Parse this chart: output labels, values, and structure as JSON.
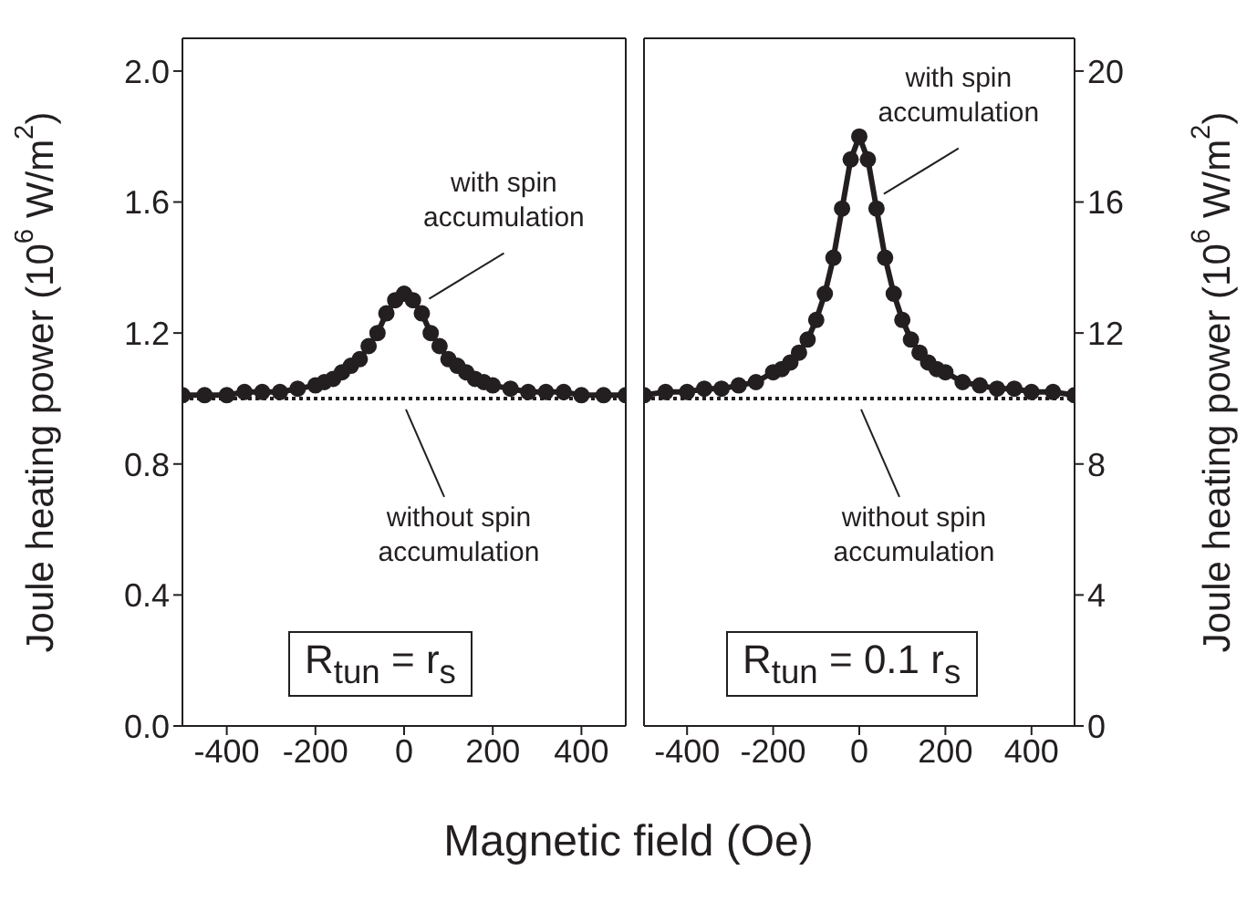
{
  "chart_data": [
    {
      "type": "line",
      "ylabel": "Joule heating power (10$^{6}$ W/m$^{2}$)",
      "xlabel": "Magnetic field (Oe)",
      "x": [
        -500,
        -450,
        -400,
        -360,
        -320,
        -280,
        -240,
        -200,
        -180,
        -160,
        -140,
        -120,
        -100,
        -80,
        -60,
        -40,
        -20,
        0,
        20,
        40,
        60,
        80,
        100,
        120,
        140,
        160,
        180,
        200,
        240,
        280,
        320,
        360,
        400,
        450,
        500
      ],
      "series": [
        {
          "name": "with spin accumulation",
          "color": "#231f20",
          "marker": "circle",
          "line_style": "solid",
          "values": [
            1.01,
            1.01,
            1.01,
            1.02,
            1.02,
            1.02,
            1.03,
            1.04,
            1.05,
            1.06,
            1.08,
            1.1,
            1.12,
            1.16,
            1.2,
            1.26,
            1.3,
            1.32,
            1.3,
            1.26,
            1.2,
            1.16,
            1.12,
            1.1,
            1.08,
            1.06,
            1.05,
            1.04,
            1.03,
            1.02,
            1.02,
            1.02,
            1.01,
            1.01,
            1.01
          ]
        },
        {
          "name": "without spin accumulation",
          "color": "#231f20",
          "marker": "none",
          "line_style": "dotted",
          "values": [
            1.0,
            1.0,
            1.0,
            1.0,
            1.0,
            1.0,
            1.0,
            1.0,
            1.0,
            1.0,
            1.0,
            1.0,
            1.0,
            1.0,
            1.0,
            1.0,
            1.0,
            1.0,
            1.0,
            1.0,
            1.0,
            1.0,
            1.0,
            1.0,
            1.0,
            1.0,
            1.0,
            1.0,
            1.0,
            1.0,
            1.0,
            1.0,
            1.0,
            1.0,
            1.0
          ]
        }
      ],
      "xlim": [
        -500,
        500
      ],
      "xticks": [
        -400,
        -200,
        0,
        200,
        400
      ],
      "ylim": [
        0,
        2.1
      ],
      "yticks": [
        {
          "value": 0,
          "label": "0.0"
        },
        0.4,
        0.8,
        1.2,
        1.6,
        {
          "value": 2,
          "label": "2.0"
        }
      ],
      "annotations": [
        "R$_{tun}$ = r$_{s}$"
      ]
    },
    {
      "type": "line",
      "ylabel": "Joule heating power (10$^{6}$ W/m$^{2}$)",
      "x": [
        -500,
        -450,
        -400,
        -360,
        -320,
        -280,
        -240,
        -200,
        -180,
        -160,
        -140,
        -120,
        -100,
        -80,
        -60,
        -40,
        -20,
        0,
        20,
        40,
        60,
        80,
        100,
        120,
        140,
        160,
        180,
        200,
        240,
        280,
        320,
        360,
        400,
        450,
        500
      ],
      "series": [
        {
          "name": "with spin accumulation",
          "color": "#231f20",
          "marker": "circle",
          "line_style": "solid",
          "values": [
            10.1,
            10.2,
            10.2,
            10.3,
            10.3,
            10.4,
            10.5,
            10.8,
            10.9,
            11.1,
            11.4,
            11.8,
            12.4,
            13.2,
            14.3,
            15.8,
            17.3,
            18.0,
            17.3,
            15.8,
            14.3,
            13.2,
            12.4,
            11.8,
            11.4,
            11.1,
            10.9,
            10.8,
            10.5,
            10.4,
            10.3,
            10.3,
            10.2,
            10.2,
            10.1
          ]
        },
        {
          "name": "without spin accumulation",
          "color": "#231f20",
          "marker": "none",
          "line_style": "dotted",
          "values": [
            10,
            10,
            10,
            10,
            10,
            10,
            10,
            10,
            10,
            10,
            10,
            10,
            10,
            10,
            10,
            10,
            10,
            10,
            10,
            10,
            10,
            10,
            10,
            10,
            10,
            10,
            10,
            10,
            10,
            10,
            10,
            10,
            10,
            10,
            10
          ]
        }
      ],
      "xlim": [
        -500,
        500
      ],
      "xticks": [
        -400,
        -200,
        0,
        200,
        400
      ],
      "ylim": [
        0,
        21
      ],
      "yticks": [
        0,
        4,
        8,
        12,
        16,
        20
      ],
      "annotations": [
        "R$_{tun}$ = 0.1 r$_{s}$"
      ]
    }
  ]
}
